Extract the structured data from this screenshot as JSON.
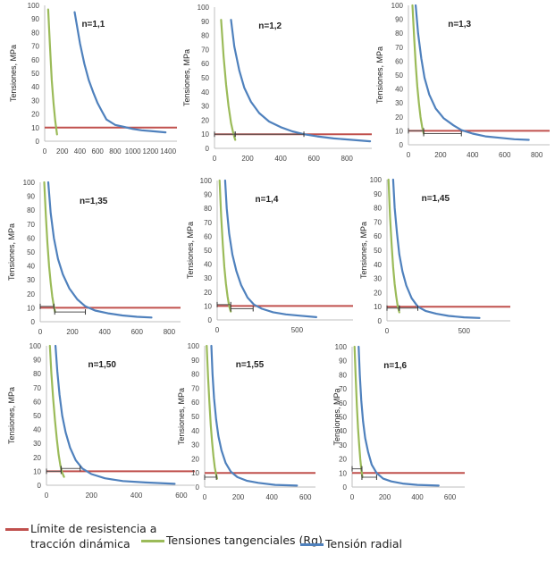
{
  "colors": {
    "limit": "#c0504d",
    "tangential": "#9bbb59",
    "radial": "#4f81bd"
  },
  "legend": [
    {
      "key": "limit",
      "label": "Límite de resistencia a\ntracción dinámica"
    },
    {
      "key": "tangential",
      "label": "Tensiones tangenciales (Rg)"
    },
    {
      "key": "radial",
      "label": "Tensión radial"
    }
  ],
  "chart_data": [
    {
      "type": "line",
      "title": "n=1,1",
      "ylabel": "Tensiones, MPa",
      "xlabel": "",
      "xlim": [
        0,
        1500
      ],
      "ylim": [
        0,
        100
      ],
      "xticks": [
        0,
        200,
        400,
        600,
        800,
        1000,
        1200,
        1400
      ],
      "yticks": [
        0,
        10,
        20,
        30,
        40,
        50,
        60,
        70,
        80,
        90,
        100
      ],
      "limit": 10,
      "series": [
        {
          "name": "Tensiones tangenciales (Rg)",
          "key": "tangential",
          "x": [
            40,
            60,
            80,
            100,
            120,
            140
          ],
          "y": [
            97,
            70,
            45,
            28,
            15,
            5
          ]
        },
        {
          "name": "Tensión radial",
          "key": "radial",
          "x": [
            340,
            400,
            450,
            500,
            550,
            600,
            650,
            700,
            800,
            900,
            1000,
            1100,
            1200,
            1370
          ],
          "y": [
            95,
            72,
            57,
            45,
            36,
            28,
            22,
            16,
            12,
            10.5,
            9,
            8,
            7.5,
            6.5
          ]
        }
      ],
      "markers": []
    },
    {
      "type": "line",
      "title": "n=1,2",
      "ylabel": "Tensiones, MPa",
      "xlabel": "",
      "xlim": [
        0,
        950
      ],
      "ylim": [
        0,
        100
      ],
      "xticks": [
        0,
        200,
        400,
        600,
        800
      ],
      "yticks": [
        0,
        10,
        20,
        30,
        40,
        50,
        60,
        70,
        80,
        90,
        100
      ],
      "limit": 10,
      "series": [
        {
          "name": "Tensiones tangenciales (Rg)",
          "key": "tangential",
          "x": [
            40,
            55,
            70,
            85,
            100,
            115,
            125
          ],
          "y": [
            91,
            65,
            45,
            30,
            18,
            10,
            6
          ]
        },
        {
          "name": "Tensión radial",
          "key": "radial",
          "x": [
            100,
            120,
            150,
            180,
            220,
            270,
            330,
            400,
            470,
            540,
            620,
            720,
            830,
            940
          ],
          "y": [
            91,
            72,
            55,
            43,
            33,
            25,
            19,
            15,
            12,
            10,
            8.5,
            7,
            6,
            5
          ]
        }
      ],
      "markers": [
        {
          "x1": 0,
          "x2": 125,
          "y": 10
        },
        {
          "x1": 125,
          "x2": 540,
          "y": 10
        }
      ]
    },
    {
      "type": "line",
      "title": "n=1,3",
      "ylabel": "Tensiones, MPa",
      "xlabel": "",
      "xlim": [
        0,
        880
      ],
      "ylim": [
        0,
        100
      ],
      "xticks": [
        0,
        200,
        400,
        600,
        800
      ],
      "yticks": [
        0,
        10,
        20,
        30,
        40,
        50,
        60,
        70,
        80,
        90,
        100
      ],
      "limit": 10,
      "series": [
        {
          "name": "Tensiones tangenciales (Rg)",
          "key": "tangential",
          "x": [
            25,
            35,
            45,
            55,
            65,
            75,
            85,
            95
          ],
          "y": [
            100,
            78,
            58,
            42,
            30,
            20,
            13,
            8
          ]
        },
        {
          "name": "Tensión radial",
          "key": "radial",
          "x": [
            45,
            60,
            80,
            100,
            130,
            170,
            220,
            280,
            330,
            400,
            480,
            570,
            660,
            750
          ],
          "y": [
            100,
            80,
            62,
            48,
            36,
            26,
            19,
            14,
            10.5,
            8,
            6,
            5,
            4,
            3.5
          ]
        }
      ],
      "markers": [
        {
          "x1": 0,
          "x2": 95,
          "y": 10
        },
        {
          "x1": 95,
          "x2": 330,
          "y": 8
        }
      ]
    },
    {
      "type": "line",
      "title": "n=1,35",
      "ylabel": "Tensiones, MPa",
      "xlabel": "",
      "xlim": [
        0,
        870
      ],
      "ylim": [
        0,
        100
      ],
      "xticks": [
        0,
        200,
        400,
        600,
        800
      ],
      "yticks": [
        0,
        10,
        20,
        30,
        40,
        50,
        60,
        70,
        80,
        90,
        100
      ],
      "limit": 10,
      "series": [
        {
          "name": "Tensiones tangenciales (Rg)",
          "key": "tangential",
          "x": [
            25,
            35,
            45,
            55,
            65,
            75,
            85,
            92
          ],
          "y": [
            100,
            76,
            56,
            40,
            28,
            18,
            11,
            7
          ]
        },
        {
          "name": "Tensión radial",
          "key": "radial",
          "x": [
            50,
            65,
            85,
            110,
            140,
            180,
            230,
            280,
            340,
            420,
            510,
            600,
            690
          ],
          "y": [
            100,
            78,
            60,
            45,
            34,
            24,
            16,
            11,
            8,
            6,
            4.5,
            3.5,
            3
          ]
        }
      ],
      "markers": [
        {
          "x1": 0,
          "x2": 85,
          "y": 11
        },
        {
          "x1": 90,
          "x2": 280,
          "y": 7
        }
      ]
    },
    {
      "type": "line",
      "title": "n=1,4",
      "ylabel": "Tensiones, MPa",
      "xlabel": "",
      "xlim": [
        0,
        850
      ],
      "ylim": [
        0,
        100
      ],
      "xticks": [
        0,
        500
      ],
      "yticks": [
        0,
        10,
        20,
        30,
        40,
        50,
        60,
        70,
        80,
        90,
        100
      ],
      "limit": 10,
      "series": [
        {
          "name": "Tensiones tangenciales (Rg)",
          "key": "tangential",
          "x": [
            15,
            25,
            35,
            45,
            55,
            65,
            75,
            85
          ],
          "y": [
            100,
            74,
            54,
            38,
            26,
            17,
            10,
            6
          ]
        },
        {
          "name": "Tensión radial",
          "key": "radial",
          "x": [
            50,
            60,
            75,
            95,
            120,
            150,
            190,
            230,
            280,
            350,
            430,
            520,
            620
          ],
          "y": [
            100,
            80,
            62,
            47,
            35,
            25,
            16,
            11,
            8,
            5.5,
            4,
            3,
            2
          ]
        }
      ],
      "markers": [
        {
          "x1": 0,
          "x2": 85,
          "y": 11
        },
        {
          "x1": 85,
          "x2": 225,
          "y": 8
        }
      ]
    },
    {
      "type": "line",
      "title": "n=1,45",
      "ylabel": "Tensiones, MPa",
      "xlabel": "",
      "xlim": [
        0,
        800
      ],
      "ylim": [
        0,
        100
      ],
      "xticks": [
        0,
        500
      ],
      "yticks": [
        0,
        10,
        20,
        30,
        40,
        50,
        60,
        70,
        80,
        90,
        100
      ],
      "limit": 10,
      "series": [
        {
          "name": "Tensiones tangenciales (Rg)",
          "key": "tangential",
          "x": [
            10,
            20,
            30,
            40,
            50,
            60,
            70,
            80
          ],
          "y": [
            100,
            74,
            54,
            38,
            26,
            17,
            10,
            6
          ]
        },
        {
          "name": "Tensión radial",
          "key": "radial",
          "x": [
            40,
            50,
            65,
            80,
            100,
            125,
            160,
            200,
            250,
            320,
            400,
            500,
            600
          ],
          "y": [
            100,
            80,
            62,
            47,
            35,
            25,
            16,
            10,
            7,
            5,
            3.5,
            2.5,
            2
          ]
        }
      ],
      "markers": [
        {
          "x1": 0,
          "x2": 80,
          "y": 9
        },
        {
          "x1": 80,
          "x2": 200,
          "y": 9
        }
      ]
    },
    {
      "type": "line",
      "title": "n=1,50",
      "ylabel": "Tensiones, MPa",
      "xlabel": "",
      "xlim": [
        0,
        660
      ],
      "ylim": [
        0,
        100
      ],
      "xticks": [
        0,
        200,
        400,
        600
      ],
      "yticks": [
        0,
        10,
        20,
        30,
        40,
        50,
        60,
        70,
        80,
        90,
        100
      ],
      "limit": 10,
      "series": [
        {
          "name": "Tensiones tangenciales (Rg)",
          "key": "tangential",
          "x": [
            15,
            22,
            30,
            38,
            46,
            54,
            62,
            70,
            78
          ],
          "y": [
            100,
            80,
            62,
            46,
            33,
            22,
            14,
            9,
            6
          ]
        },
        {
          "name": "Tensión radial",
          "key": "radial",
          "x": [
            40,
            48,
            58,
            70,
            85,
            105,
            130,
            160,
            200,
            260,
            340,
            440,
            570
          ],
          "y": [
            100,
            82,
            65,
            50,
            38,
            27,
            18,
            12,
            8,
            5,
            3,
            2,
            1
          ]
        }
      ],
      "markers": [
        {
          "x1": 0,
          "x2": 65,
          "y": 10
        },
        {
          "x1": 65,
          "x2": 150,
          "y": 12
        }
      ]
    },
    {
      "type": "line",
      "title": "n=1,55",
      "ylabel": "Tensiones, MPa",
      "xlabel": "",
      "xlim": [
        0,
        660
      ],
      "ylim": [
        0,
        100
      ],
      "xticks": [
        0,
        200,
        400,
        600
      ],
      "yticks": [
        0,
        10,
        20,
        30,
        40,
        50,
        60,
        70,
        80,
        90,
        100
      ],
      "limit": 10,
      "series": [
        {
          "name": "Tensiones tangenciales (Rg)",
          "key": "tangential",
          "x": [
            12,
            20,
            28,
            36,
            44,
            52,
            60,
            68,
            74
          ],
          "y": [
            100,
            78,
            60,
            44,
            32,
            22,
            14,
            9,
            6
          ]
        },
        {
          "name": "Tensión radial",
          "key": "radial",
          "x": [
            40,
            47,
            56,
            68,
            82,
            100,
            125,
            155,
            195,
            250,
            320,
            420,
            550
          ],
          "y": [
            100,
            80,
            63,
            48,
            36,
            26,
            17,
            11,
            7,
            4.5,
            3,
            1.5,
            1
          ]
        }
      ],
      "markers": [
        {
          "x1": 0,
          "x2": 70,
          "y": 7
        }
      ]
    },
    {
      "type": "line",
      "title": "n=1,6",
      "ylabel": "Tensiones, MPa",
      "xlabel": "",
      "xlim": [
        0,
        690
      ],
      "ylim": [
        0,
        100
      ],
      "xticks": [
        0,
        200,
        400,
        600
      ],
      "yticks": [
        0,
        10,
        20,
        30,
        40,
        50,
        60,
        70,
        80,
        90,
        100
      ],
      "limit": 10,
      "series": [
        {
          "name": "Tensiones tangenciales (Rg)",
          "key": "tangential",
          "x": [
            15,
            22,
            29,
            36,
            43,
            50,
            57,
            63
          ],
          "y": [
            100,
            78,
            58,
            42,
            30,
            20,
            12,
            7
          ]
        },
        {
          "name": "Tensión radial",
          "key": "radial",
          "x": [
            40,
            47,
            56,
            67,
            80,
            98,
            120,
            150,
            190,
            240,
            310,
            400,
            530
          ],
          "y": [
            100,
            80,
            62,
            47,
            35,
            25,
            16,
            10,
            6,
            4,
            2.5,
            1.5,
            1
          ]
        }
      ],
      "markers": [
        {
          "x1": 0,
          "x2": 60,
          "y": 13
        },
        {
          "x1": 60,
          "x2": 150,
          "y": 7
        }
      ]
    }
  ]
}
